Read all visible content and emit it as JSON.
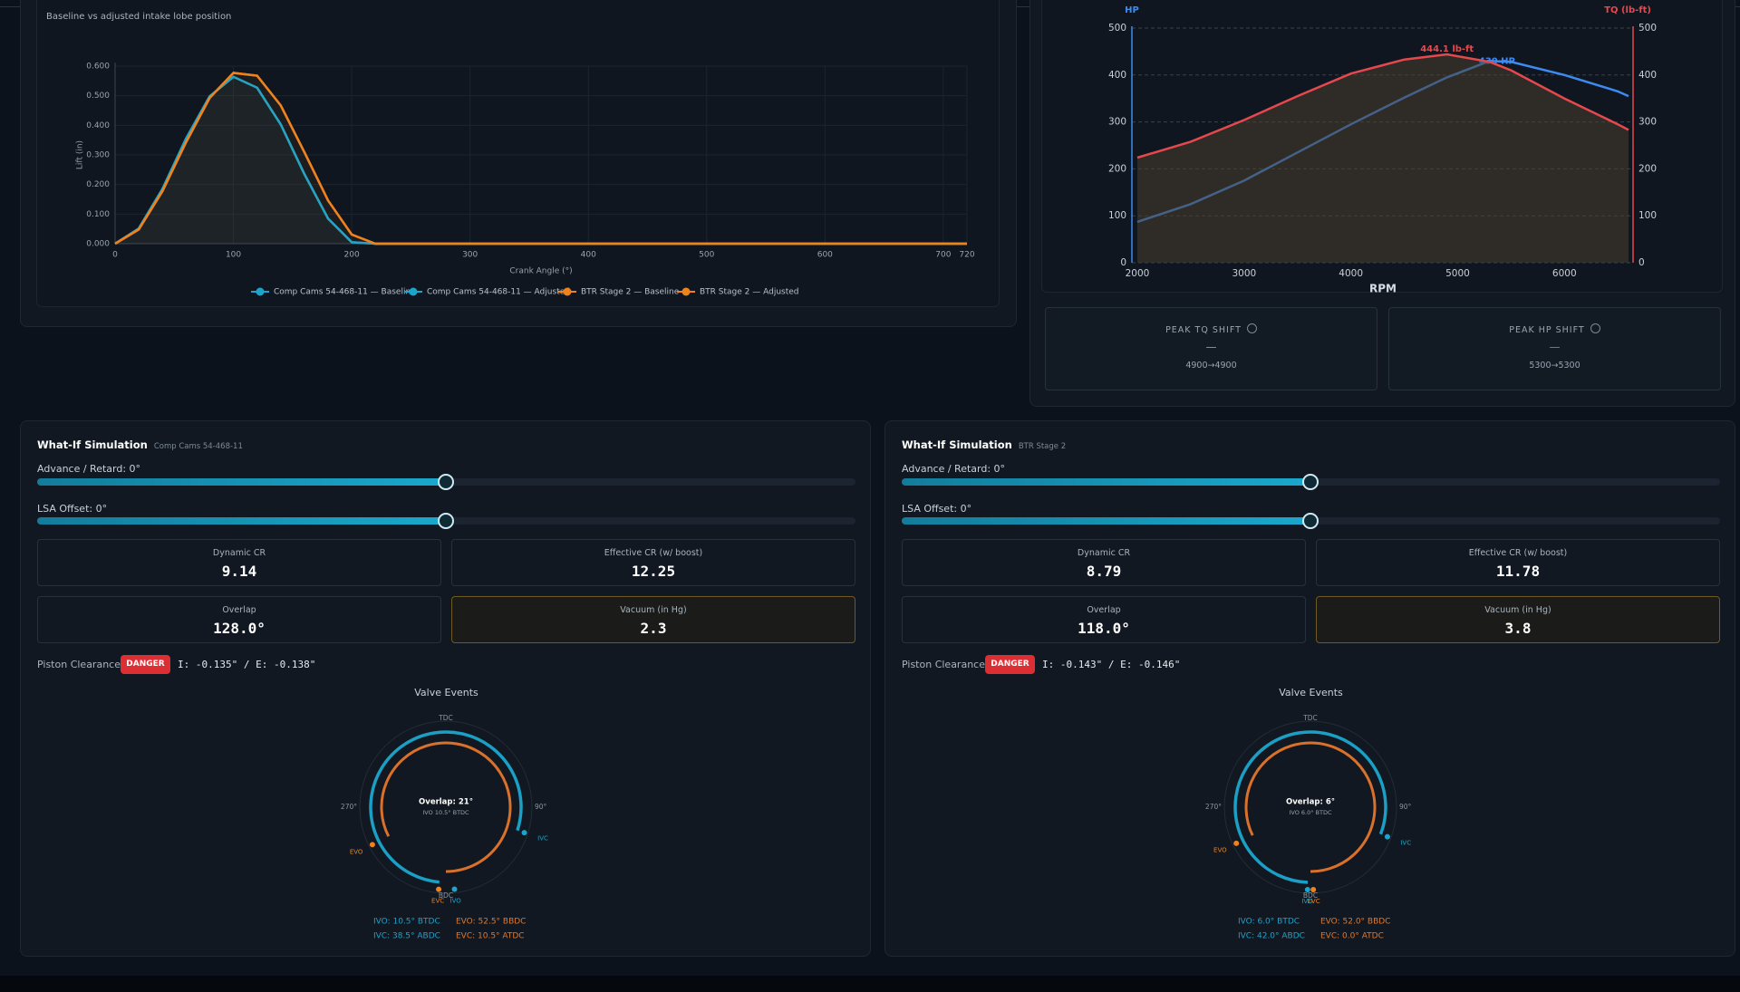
{
  "lift_panel": {
    "subtitle": "Baseline vs adjusted intake lobe position",
    "chart": {
      "type": "line",
      "x": [
        0,
        20,
        40,
        60,
        80,
        100,
        120,
        140,
        160,
        180,
        200,
        220,
        720
      ],
      "series": [
        {
          "name": "Comp Cams 54-468-11 — Baseline",
          "color": "#1aa6cc",
          "values": [
            0,
            0.051,
            0.185,
            0.355,
            0.498,
            0.564,
            0.527,
            0.403,
            0.235,
            0.085,
            0.005,
            0,
            0
          ]
        },
        {
          "name": "Comp Cams 54-468-11 — Adjusted",
          "color": "#1aa6cc",
          "values": [
            0,
            0.051,
            0.185,
            0.355,
            0.498,
            0.564,
            0.527,
            0.403,
            0.235,
            0.085,
            0.005,
            0,
            0
          ]
        },
        {
          "name": "BTR Stage 2 — Baseline",
          "color": "#f0821e",
          "values": [
            0,
            0.048,
            0.177,
            0.343,
            0.493,
            0.577,
            0.568,
            0.467,
            0.309,
            0.146,
            0.031,
            0,
            0
          ]
        },
        {
          "name": "BTR Stage 2 — Adjusted",
          "color": "#f0821e",
          "values": [
            0,
            0.048,
            0.177,
            0.343,
            0.493,
            0.577,
            0.568,
            0.467,
            0.309,
            0.146,
            0.031,
            0,
            0
          ]
        }
      ],
      "x_label": "Crank Angle (°)",
      "y_label": "Lift (in)",
      "xlim": [
        0,
        720
      ],
      "xticks": [
        0,
        100,
        200,
        300,
        400,
        500,
        600,
        700,
        720
      ],
      "ylim": [
        0,
        0.6
      ],
      "yticks": [
        {
          "value": 0,
          "label": "0.000"
        },
        {
          "value": 0.1,
          "label": "0.100"
        },
        {
          "value": 0.2,
          "label": "0.200"
        },
        {
          "value": 0.3,
          "label": "0.300"
        },
        {
          "value": 0.4,
          "label": "0.400"
        },
        {
          "value": 0.5,
          "label": "0.500"
        },
        {
          "value": 0.6,
          "label": "0.600"
        }
      ],
      "grid": true
    }
  },
  "dyno_panel": {
    "chart": {
      "type": "line",
      "x": [
        2000,
        2500,
        3000,
        3500,
        4000,
        4500,
        4900,
        5300,
        5500,
        6000,
        6500,
        6600
      ],
      "series": [
        {
          "name": "HP",
          "color": "#3d8bf2",
          "values": [
            87,
            125,
            175,
            235,
            295,
            352,
            395,
            430,
            428,
            400,
            365,
            355
          ],
          "peak_label": "430 HP"
        },
        {
          "name": "TQ (lb-ft)",
          "color": "#e5484d",
          "axis": "y2",
          "values": [
            224,
            258,
            304,
            355,
            403,
            433,
            444.1,
            428,
            410,
            350,
            295,
            283
          ],
          "peak_label": "444.1 lb-ft"
        }
      ],
      "x_label": "RPM",
      "xlim": [
        2000,
        6600
      ],
      "xticks": [
        2000,
        3000,
        4000,
        5000,
        6000
      ],
      "ylim": [
        0,
        500
      ],
      "yticks": [
        0,
        100,
        200,
        300,
        400,
        500
      ],
      "y2lim": [
        0,
        500
      ],
      "y2ticks": [
        0,
        100,
        200,
        300,
        400,
        500
      ],
      "grid": true
    },
    "cards": [
      {
        "title": "PEAK TQ SHIFT",
        "value": "—",
        "color": "#f0821e",
        "detail": "4900→4900"
      },
      {
        "title": "PEAK HP SHIFT",
        "value": "—",
        "color": "#3d8bf2",
        "detail": "5300→5300"
      }
    ]
  },
  "sims": [
    {
      "title": "What-If Simulation",
      "cam": "Comp Cams 54-468-11",
      "advance": "Advance / Retard: 0°",
      "lsa": "LSA Offset: 0°",
      "metrics": [
        {
          "label": "Dynamic CR",
          "value": "9.14"
        },
        {
          "label": "Effective CR (w/ boost)",
          "value": "12.25"
        },
        {
          "label": "Overlap",
          "value": "128.0°"
        },
        {
          "label": "Vacuum (in Hg)",
          "value": "2.3"
        }
      ],
      "clearance_label": "Piston Clearance:",
      "badge": "DANGER",
      "clearance": "I: -0.135\" / E: -0.138\"",
      "valve_title": "Valve Events",
      "dial": {
        "labels": [
          "TDC",
          "90°",
          "BDC",
          "270°"
        ],
        "overlap": "Overlap: 21°",
        "sub": "IVO 10.5° BTDC",
        "markers": [
          "EVO",
          "IVC",
          "EVC",
          "IVO"
        ]
      },
      "events": [
        "IVO: 10.5° BTDC",
        "EVO: 52.5° BBDC",
        "IVC: 38.5° ABDC",
        "EVC: 10.5° ATDC"
      ]
    },
    {
      "title": "What-If Simulation",
      "cam": "BTR Stage 2",
      "advance": "Advance / Retard: 0°",
      "lsa": "LSA Offset: 0°",
      "metrics": [
        {
          "label": "Dynamic CR",
          "value": "8.79"
        },
        {
          "label": "Effective CR (w/ boost)",
          "value": "11.78"
        },
        {
          "label": "Overlap",
          "value": "118.0°"
        },
        {
          "label": "Vacuum (in Hg)",
          "value": "3.8"
        }
      ],
      "clearance_label": "Piston Clearance:",
      "badge": "DANGER",
      "clearance": "I: -0.143\" / E: -0.146\"",
      "valve_title": "Valve Events",
      "dial": {
        "labels": [
          "TDC",
          "90°",
          "BDC",
          "270°"
        ],
        "overlap": "Overlap: 6°",
        "sub": "IVO 6.0° BTDC",
        "markers": [
          "EVO",
          "IVC",
          "EVC",
          "IVO"
        ]
      },
      "events": [
        "IVO: 6.0° BTDC",
        "EVO: 52.0° BBDC",
        "IVC: 42.0° ABDC",
        "EVC: 0.0° ATDC"
      ]
    }
  ]
}
